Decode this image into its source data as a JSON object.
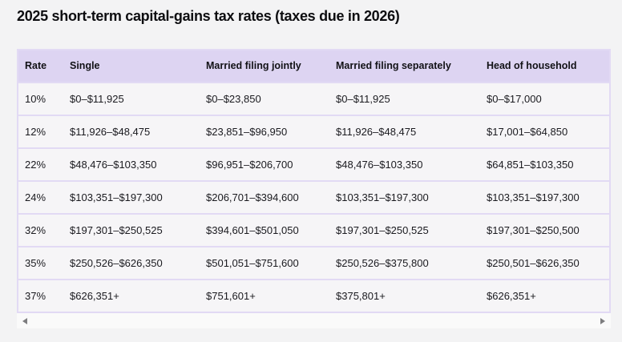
{
  "title": "2025 short-term capital-gains tax rates (taxes due in 2026)",
  "colors": {
    "page_background": "#f3f3f4",
    "header_background": "#ddd4f2",
    "row_background": "#f6f5f7",
    "table_border": "#e2daf4",
    "title_text": "#0d0d10",
    "cell_text": "#1a1a1f",
    "scrollbar_track": "#fafafa",
    "scrollbar_arrow": "#7d7d7f"
  },
  "scrollbar": {
    "orientation": "horizontal",
    "left_arrow_icon": "triangle-left",
    "right_arrow_icon": "triangle-right"
  },
  "chart_data": {
    "type": "table",
    "title": "2025 short-term capital-gains tax rates (taxes due in 2026)",
    "columns": [
      "Rate",
      "Single",
      "Married filing jointly",
      "Married filing separately",
      "Head of household"
    ],
    "rows": [
      [
        "10%",
        "$0–$11,925",
        "$0–$23,850",
        "$0–$11,925",
        "$0–$17,000"
      ],
      [
        "12%",
        "$11,926–$48,475",
        "$23,851–$96,950",
        "$11,926–$48,475",
        "$17,001–$64,850"
      ],
      [
        "22%",
        "$48,476–$103,350",
        "$96,951–$206,700",
        "$48,476–$103,350",
        "$64,851–$103,350"
      ],
      [
        "24%",
        "$103,351–$197,300",
        "$206,701–$394,600",
        "$103,351–$197,300",
        "$103,351–$197,300"
      ],
      [
        "32%",
        "$197,301–$250,525",
        "$394,601–$501,050",
        "$197,301–$250,525",
        "$197,301–$250,500"
      ],
      [
        "35%",
        "$250,526–$626,350",
        "$501,051–$751,600",
        "$250,526–$375,800",
        "$250,501–$626,350"
      ],
      [
        "37%",
        "$626,351+",
        "$751,601+",
        "$375,801+",
        "$626,351+"
      ]
    ]
  }
}
